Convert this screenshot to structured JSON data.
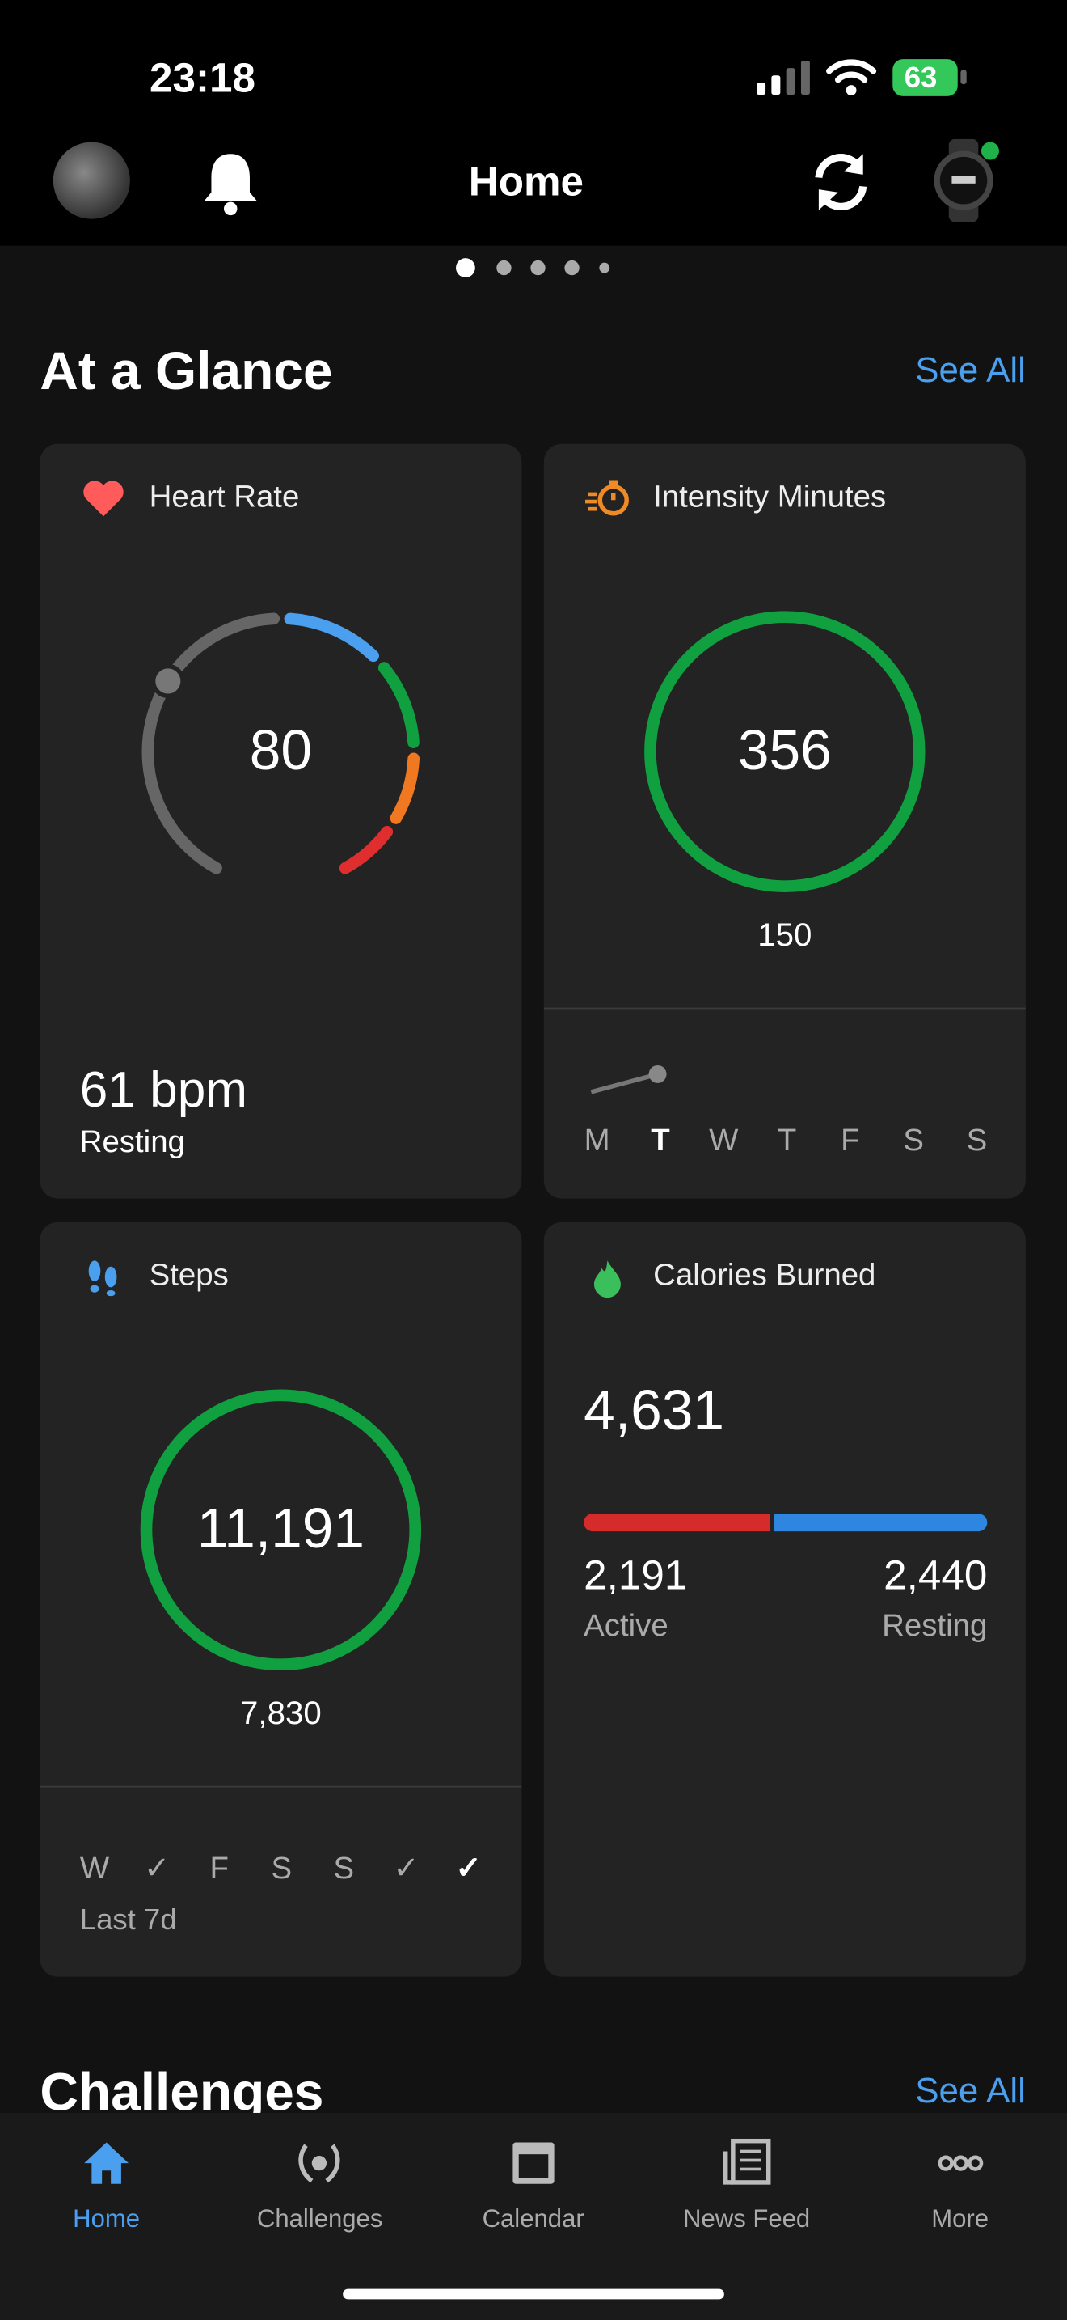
{
  "status_bar": {
    "time": "23:18",
    "battery": "63"
  },
  "header": {
    "title": "Home"
  },
  "glance": {
    "title": "At a Glance",
    "see_all": "See All",
    "heart_rate": {
      "title": "Heart Rate",
      "value": "80",
      "resting_value": "61 bpm",
      "resting_label": "Resting"
    },
    "intensity_minutes": {
      "title": "Intensity Minutes",
      "value": "356",
      "goal": "150",
      "days": [
        "M",
        "T",
        "W",
        "T",
        "F",
        "S",
        "S"
      ]
    },
    "steps": {
      "title": "Steps",
      "value": "11,191",
      "goal": "7,830",
      "days": [
        "W",
        "✓",
        "F",
        "S",
        "S",
        "✓",
        "✓"
      ],
      "footer": "Last 7d"
    },
    "calories": {
      "title": "Calories Burned",
      "total": "4,631",
      "active_value": "2,191",
      "active_label": "Active",
      "resting_value": "2,440",
      "resting_label": "Resting"
    }
  },
  "challenges": {
    "title": "Challenges",
    "see_all": "See All"
  },
  "tab_bar": {
    "items": [
      "Home",
      "Challenges",
      "Calendar",
      "News Feed",
      "More"
    ]
  }
}
